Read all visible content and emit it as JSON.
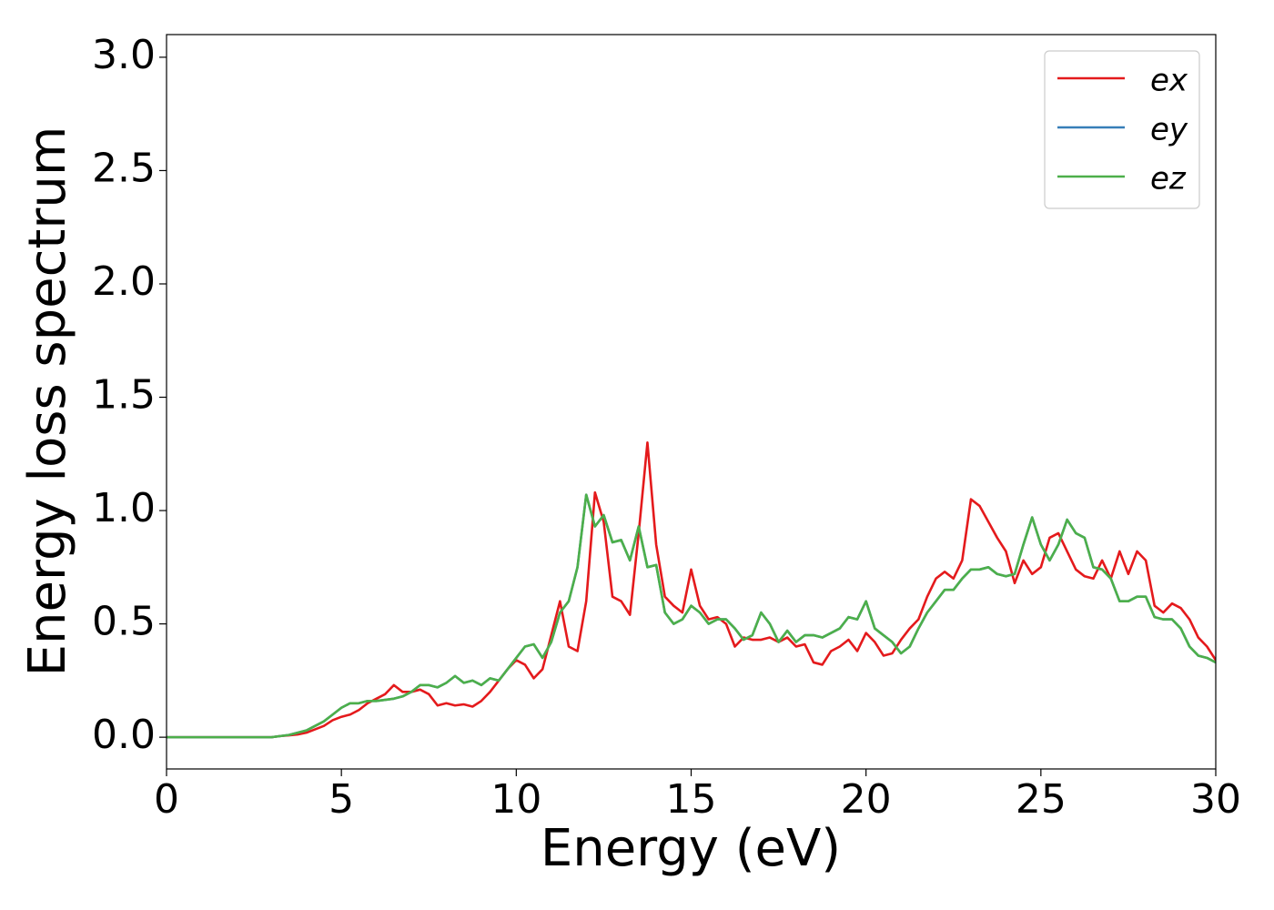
{
  "chart_data": {
    "type": "line",
    "xlabel": "Energy (eV)",
    "ylabel": "Energy loss spectrum",
    "xlim": [
      0,
      30
    ],
    "ylim": [
      -0.14,
      3.1
    ],
    "xticks": [
      0,
      5,
      10,
      15,
      20,
      25,
      30
    ],
    "yticks": [
      {
        "value": 0,
        "label": "0.0"
      },
      0.5,
      {
        "value": 1,
        "label": "1.0"
      },
      1.5,
      {
        "value": 2,
        "label": "2.0"
      },
      2.5,
      {
        "value": 3,
        "label": "3.0"
      }
    ],
    "grid": false,
    "legend": "upper right",
    "x": [
      0,
      0.25,
      0.5,
      0.75,
      1,
      1.25,
      1.5,
      1.75,
      2,
      2.25,
      2.5,
      2.75,
      3,
      3.25,
      3.5,
      3.75,
      4,
      4.25,
      4.5,
      4.75,
      5,
      5.25,
      5.5,
      5.75,
      6,
      6.25,
      6.5,
      6.75,
      7,
      7.25,
      7.5,
      7.75,
      8,
      8.25,
      8.5,
      8.75,
      9,
      9.25,
      9.5,
      9.75,
      10,
      10.25,
      10.5,
      10.75,
      11,
      11.25,
      11.5,
      11.75,
      12,
      12.25,
      12.5,
      12.75,
      13,
      13.25,
      13.5,
      13.75,
      14,
      14.25,
      14.5,
      14.75,
      15,
      15.25,
      15.5,
      15.75,
      16,
      16.25,
      16.5,
      16.75,
      17,
      17.25,
      17.5,
      17.75,
      18,
      18.25,
      18.5,
      18.75,
      19,
      19.25,
      19.5,
      19.75,
      20,
      20.25,
      20.5,
      20.75,
      21,
      21.25,
      21.5,
      21.75,
      22,
      22.25,
      22.5,
      22.75,
      23,
      23.25,
      23.5,
      23.75,
      24,
      24.25,
      24.5,
      24.75,
      25,
      25.25,
      25.5,
      25.75,
      26,
      26.25,
      26.5,
      26.75,
      27,
      27.25,
      27.5,
      27.75,
      28,
      28.25,
      28.5,
      28.75,
      29,
      29.25,
      29.5,
      29.75,
      30
    ],
    "series": [
      {
        "name": "ex",
        "color": "#e41a1c",
        "values": [
          0,
          0,
          0,
          0,
          0,
          0,
          0,
          0,
          0,
          0,
          0,
          0,
          0,
          0.005,
          0.008,
          0.012,
          0.02,
          0.035,
          0.05,
          0.075,
          0.09,
          0.1,
          0.12,
          0.15,
          0.17,
          0.19,
          0.23,
          0.2,
          0.2,
          0.21,
          0.19,
          0.14,
          0.15,
          0.14,
          0.145,
          0.135,
          0.16,
          0.2,
          0.25,
          0.3,
          0.34,
          0.32,
          0.26,
          0.3,
          0.45,
          0.6,
          0.4,
          0.38,
          0.6,
          1.08,
          0.95,
          0.62,
          0.6,
          0.54,
          0.9,
          1.3,
          0.85,
          0.62,
          0.58,
          0.55,
          0.74,
          0.58,
          0.52,
          0.53,
          0.5,
          0.4,
          0.44,
          0.43,
          0.43,
          0.44,
          0.42,
          0.44,
          0.4,
          0.41,
          0.33,
          0.32,
          0.38,
          0.4,
          0.43,
          0.38,
          0.46,
          0.42,
          0.36,
          0.37,
          0.43,
          0.48,
          0.52,
          0.62,
          0.7,
          0.73,
          0.7,
          0.78,
          1.05,
          1.02,
          0.95,
          0.88,
          0.82,
          0.68,
          0.78,
          0.72,
          0.75,
          0.88,
          0.9,
          0.82,
          0.74,
          0.71,
          0.7,
          0.78,
          0.7,
          0.82,
          0.72,
          0.82,
          0.78,
          0.58,
          0.55,
          0.59,
          0.57,
          0.52,
          0.44,
          0.4,
          0.34
        ]
      },
      {
        "name": "ey",
        "color": "#377eb8",
        "values": [
          0,
          0,
          0,
          0,
          0,
          0,
          0,
          0,
          0,
          0,
          0,
          0,
          0,
          0.005,
          0.01,
          0.02,
          0.03,
          0.05,
          0.07,
          0.1,
          0.13,
          0.15,
          0.15,
          0.16,
          0.16,
          0.165,
          0.17,
          0.18,
          0.2,
          0.23,
          0.23,
          0.22,
          0.24,
          0.27,
          0.24,
          0.25,
          0.23,
          0.26,
          0.25,
          0.3,
          0.35,
          0.4,
          0.41,
          0.35,
          0.42,
          0.55,
          0.6,
          0.75,
          1.07,
          0.93,
          0.98,
          0.86,
          0.87,
          0.78,
          0.93,
          0.75,
          0.76,
          0.55,
          0.5,
          0.52,
          0.58,
          0.55,
          0.5,
          0.52,
          0.52,
          0.48,
          0.43,
          0.45,
          0.55,
          0.5,
          0.42,
          0.47,
          0.42,
          0.45,
          0.45,
          0.44,
          0.46,
          0.48,
          0.53,
          0.52,
          0.6,
          0.48,
          0.45,
          0.42,
          0.37,
          0.4,
          0.48,
          0.55,
          0.6,
          0.65,
          0.65,
          0.7,
          0.74,
          0.74,
          0.75,
          0.72,
          0.71,
          0.72,
          0.85,
          0.97,
          0.85,
          0.78,
          0.85,
          0.96,
          0.9,
          0.88,
          0.75,
          0.74,
          0.7,
          0.6,
          0.6,
          0.62,
          0.62,
          0.53,
          0.52,
          0.52,
          0.48,
          0.4,
          0.36,
          0.35,
          0.33
        ]
      },
      {
        "name": "ez",
        "color": "#4daf4a",
        "values": [
          0,
          0,
          0,
          0,
          0,
          0,
          0,
          0,
          0,
          0,
          0,
          0,
          0,
          0.005,
          0.01,
          0.02,
          0.03,
          0.05,
          0.07,
          0.1,
          0.13,
          0.15,
          0.15,
          0.16,
          0.16,
          0.165,
          0.17,
          0.18,
          0.2,
          0.23,
          0.23,
          0.22,
          0.24,
          0.27,
          0.24,
          0.25,
          0.23,
          0.26,
          0.25,
          0.3,
          0.35,
          0.4,
          0.41,
          0.35,
          0.42,
          0.55,
          0.6,
          0.75,
          1.07,
          0.93,
          0.98,
          0.86,
          0.87,
          0.78,
          0.93,
          0.75,
          0.76,
          0.55,
          0.5,
          0.52,
          0.58,
          0.55,
          0.5,
          0.52,
          0.52,
          0.48,
          0.43,
          0.45,
          0.55,
          0.5,
          0.42,
          0.47,
          0.42,
          0.45,
          0.45,
          0.44,
          0.46,
          0.48,
          0.53,
          0.52,
          0.6,
          0.48,
          0.45,
          0.42,
          0.37,
          0.4,
          0.48,
          0.55,
          0.6,
          0.65,
          0.65,
          0.7,
          0.74,
          0.74,
          0.75,
          0.72,
          0.71,
          0.72,
          0.85,
          0.97,
          0.85,
          0.78,
          0.85,
          0.96,
          0.9,
          0.88,
          0.75,
          0.74,
          0.7,
          0.6,
          0.6,
          0.62,
          0.62,
          0.53,
          0.52,
          0.52,
          0.48,
          0.4,
          0.36,
          0.35,
          0.33
        ]
      }
    ]
  }
}
